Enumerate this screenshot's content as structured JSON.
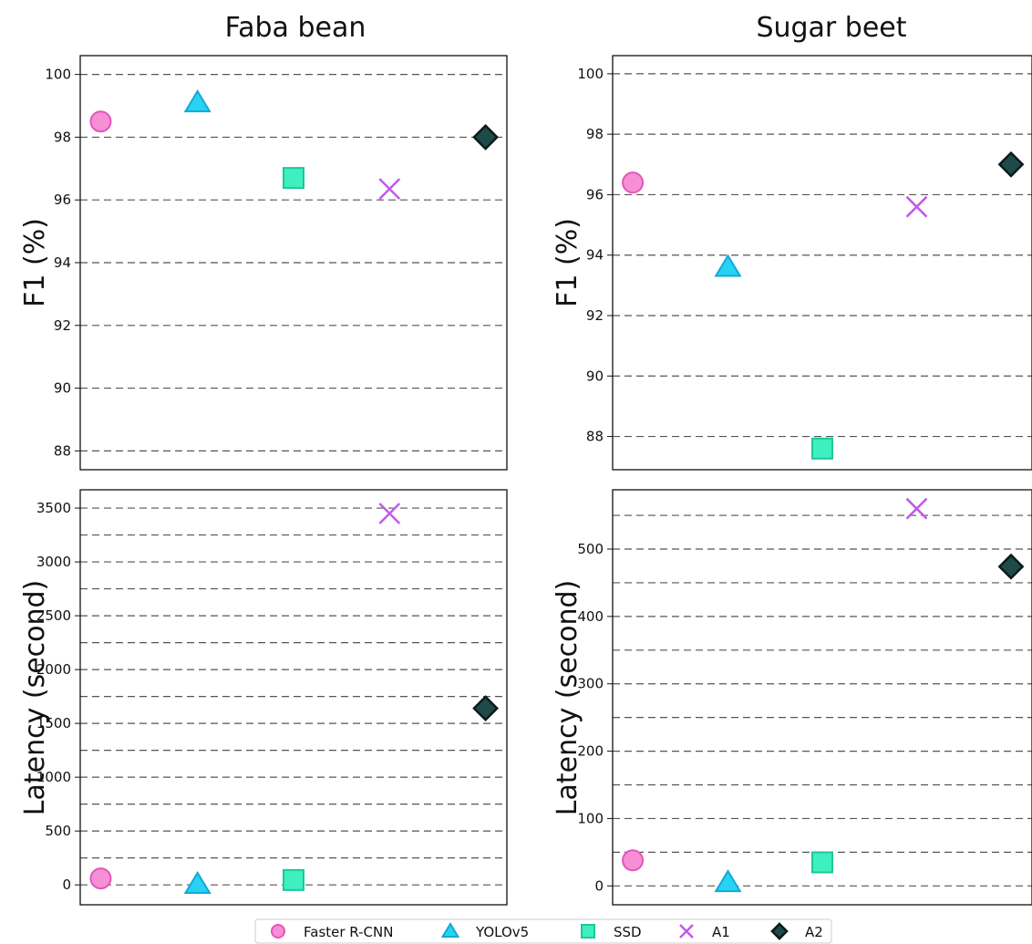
{
  "chart_data": [
    {
      "type": "scatter",
      "title": "Faba bean",
      "ylabel": "F1 (%)",
      "ylim": [
        87.4,
        100.6
      ],
      "yticks": [
        88,
        90,
        92,
        94,
        96,
        98,
        100
      ],
      "grid_step": 2,
      "grid": true,
      "series": [
        {
          "name": "Faster R-CNN",
          "x": 0,
          "y": 98.5
        },
        {
          "name": "YOLOv5",
          "x": 1,
          "y": 99.1
        },
        {
          "name": "SSD",
          "x": 2,
          "y": 96.7
        },
        {
          "name": "A1",
          "x": 3,
          "y": 96.35
        },
        {
          "name": "A2",
          "x": 4,
          "y": 98.0
        }
      ]
    },
    {
      "type": "scatter",
      "title": "Sugar beet",
      "ylabel": "F1 (%)",
      "ylim": [
        86.9,
        100.6
      ],
      "yticks": [
        88,
        90,
        92,
        94,
        96,
        98,
        100
      ],
      "grid_step": 2,
      "grid": true,
      "series": [
        {
          "name": "Faster R-CNN",
          "x": 0,
          "y": 96.4
        },
        {
          "name": "YOLOv5",
          "x": 1,
          "y": 93.6
        },
        {
          "name": "SSD",
          "x": 2,
          "y": 87.6
        },
        {
          "name": "A1",
          "x": 3,
          "y": 95.6
        },
        {
          "name": "A2",
          "x": 4,
          "y": 97.0
        }
      ]
    },
    {
      "type": "scatter",
      "title": "",
      "ylabel": "Latency (second)",
      "ylim": [
        -185,
        3670
      ],
      "yticks": [
        0,
        500,
        1000,
        1500,
        2000,
        2500,
        3000,
        3500
      ],
      "grid_step": 250,
      "grid": true,
      "series": [
        {
          "name": "Faster R-CNN",
          "x": 0,
          "y": 60
        },
        {
          "name": "YOLOv5",
          "x": 1,
          "y": 5
        },
        {
          "name": "SSD",
          "x": 2,
          "y": 45
        },
        {
          "name": "A1",
          "x": 3,
          "y": 3450
        },
        {
          "name": "A2",
          "x": 4,
          "y": 1640
        }
      ]
    },
    {
      "type": "scatter",
      "title": "",
      "ylabel": "Latency (second)",
      "ylim": [
        -28,
        588
      ],
      "yticks": [
        0,
        100,
        200,
        300,
        400,
        500
      ],
      "grid_step": 50,
      "grid": true,
      "series": [
        {
          "name": "Faster R-CNN",
          "x": 0,
          "y": 38
        },
        {
          "name": "YOLOv5",
          "x": 1,
          "y": 5
        },
        {
          "name": "SSD",
          "x": 2,
          "y": 35
        },
        {
          "name": "A1",
          "x": 3,
          "y": 560
        },
        {
          "name": "A2",
          "x": 4,
          "y": 474
        }
      ]
    }
  ],
  "legend": {
    "placement": "bottom-center",
    "items": [
      {
        "name": "Faster R-CNN",
        "marker": "circle",
        "color": "#f78fd6",
        "edge": "#e455b8"
      },
      {
        "name": "YOLOv5",
        "marker": "triangle",
        "color": "#27d3f5",
        "edge": "#12a9d6"
      },
      {
        "name": "SSD",
        "marker": "square",
        "color": "#3ef0c0",
        "edge": "#1fc79a"
      },
      {
        "name": "A1",
        "marker": "x",
        "color": "#c35ae8",
        "edge": "#c35ae8"
      },
      {
        "name": "A2",
        "marker": "diamond",
        "color": "#1e4a4a",
        "edge": "#0b1a1a"
      }
    ]
  }
}
